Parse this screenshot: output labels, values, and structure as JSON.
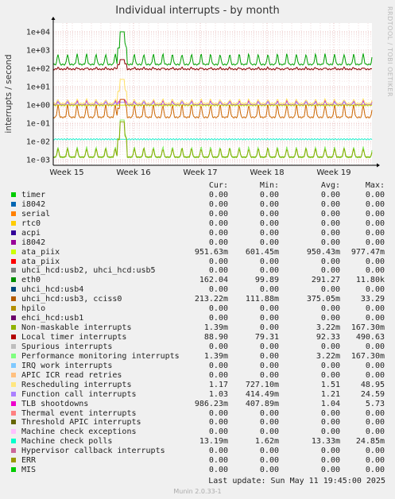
{
  "header": {
    "title": "Individual interrupts - by month",
    "side_text": "RRDTOOL / TOBI OETIKER"
  },
  "chart_data": {
    "type": "line",
    "title": "Individual interrupts - by month",
    "ylabel": "interrupts / second",
    "y_scale": "log",
    "ylim": [
      0.0005,
      30000
    ],
    "y_ticks": [
      "1e+04",
      "1e+03",
      "1e+02",
      "1e+01",
      "1e+00",
      "1e-01",
      "1e-02",
      "1e-03"
    ],
    "y_tick_values": [
      10000,
      1000,
      100,
      10,
      1,
      0.1,
      0.01,
      0.001
    ],
    "x_ticks": [
      "Week 15",
      "Week 16",
      "Week 17",
      "Week 18",
      "Week 19"
    ],
    "grid": true,
    "spike_at": "Week 16",
    "series": [
      {
        "name": "eth0",
        "color": "#00a000",
        "typical": 162,
        "daily_peak": 600,
        "spike": 10000
      },
      {
        "name": "Local timer interrupts",
        "color": "#8b0000",
        "typical": 89,
        "daily_peak": 110,
        "spike": 300
      },
      {
        "name": "TLB shootdowns",
        "color": "#cc00cc",
        "typical": 1.0,
        "daily_peak": 1.6,
        "spike": 2
      },
      {
        "name": "Function call interrupts",
        "color": "#a080ff",
        "typical": 1.03,
        "daily_peak": 1.5,
        "spike": 1.4
      },
      {
        "name": "ata_piix",
        "color": "#ccee00",
        "typical": 0.95,
        "daily_peak": 0.98,
        "spike": 0.97
      },
      {
        "name": "uhci_hcd:usb3, cciss0",
        "color": "#cc6600",
        "typical": 0.21,
        "daily_peak": 1.0,
        "spike": 2
      },
      {
        "name": "Rescheduling interrupts",
        "color": "#ffe066",
        "typical": 1.2,
        "daily_peak": 2,
        "spike": 25
      },
      {
        "name": "Machine check polls",
        "color": "#22eecc",
        "typical": 0.0132,
        "daily_peak": 0.0134,
        "spike": 0.0133
      },
      {
        "name": "Performance monitoring interrupts",
        "color": "#88ee66",
        "typical": 0.0014,
        "daily_peak": 0.005,
        "spike": 0.15
      },
      {
        "name": "Non-maskable interrupts",
        "color": "#88aa00",
        "typical": 0.0014,
        "daily_peak": 0.004,
        "spike": 0.12
      }
    ]
  },
  "legend": {
    "headers": {
      "cur": "Cur:",
      "min": "Min:",
      "avg": "Avg:",
      "max": "Max:"
    },
    "rows": [
      {
        "name": "timer",
        "color": "#00cc00",
        "cur": "0.00",
        "min": "0.00",
        "avg": "0.00",
        "max": "0.00"
      },
      {
        "name": "i8042",
        "color": "#0066b3",
        "cur": "0.00",
        "min": "0.00",
        "avg": "0.00",
        "max": "0.00"
      },
      {
        "name": "serial",
        "color": "#ff8000",
        "cur": "0.00",
        "min": "0.00",
        "avg": "0.00",
        "max": "0.00"
      },
      {
        "name": "rtc0",
        "color": "#ffcc00",
        "cur": "0.00",
        "min": "0.00",
        "avg": "0.00",
        "max": "0.00"
      },
      {
        "name": "acpi",
        "color": "#330099",
        "cur": "0.00",
        "min": "0.00",
        "avg": "0.00",
        "max": "0.00"
      },
      {
        "name": "i8042",
        "color": "#990099",
        "cur": "0.00",
        "min": "0.00",
        "avg": "0.00",
        "max": "0.00"
      },
      {
        "name": "ata_piix",
        "color": "#ccff00",
        "cur": "951.63m",
        "min": "601.45m",
        "avg": "950.43m",
        "max": "977.47m"
      },
      {
        "name": "ata_piix",
        "color": "#ff0000",
        "cur": "0.00",
        "min": "0.00",
        "avg": "0.00",
        "max": "0.00"
      },
      {
        "name": "uhci_hcd:usb2, uhci_hcd:usb5",
        "color": "#808080",
        "cur": "0.00",
        "min": "0.00",
        "avg": "0.00",
        "max": "0.00"
      },
      {
        "name": "eth0",
        "color": "#008f00",
        "cur": "162.04",
        "min": "99.89",
        "avg": "291.27",
        "max": "11.80k"
      },
      {
        "name": "uhci_hcd:usb4",
        "color": "#00487d",
        "cur": "0.00",
        "min": "0.00",
        "avg": "0.00",
        "max": "0.00"
      },
      {
        "name": "uhci_hcd:usb3, cciss0",
        "color": "#b35a00",
        "cur": "213.22m",
        "min": "111.88m",
        "avg": "375.05m",
        "max": "33.29"
      },
      {
        "name": "hpilo",
        "color": "#b38f00",
        "cur": "0.00",
        "min": "0.00",
        "avg": "0.00",
        "max": "0.00"
      },
      {
        "name": "ehci_hcd:usb1",
        "color": "#6b006b",
        "cur": "0.00",
        "min": "0.00",
        "avg": "0.00",
        "max": "0.00"
      },
      {
        "name": "Non-maskable interrupts",
        "color": "#8fb300",
        "cur": "1.39m",
        "min": "0.00",
        "avg": "3.22m",
        "max": "167.30m"
      },
      {
        "name": "Local timer interrupts",
        "color": "#b30000",
        "cur": "88.90",
        "min": "79.31",
        "avg": "92.33",
        "max": "490.63"
      },
      {
        "name": "Spurious interrupts",
        "color": "#bebebe",
        "cur": "0.00",
        "min": "0.00",
        "avg": "0.00",
        "max": "0.00"
      },
      {
        "name": "Performance monitoring interrupts",
        "color": "#80ff80",
        "cur": "1.39m",
        "min": "0.00",
        "avg": "3.22m",
        "max": "167.30m"
      },
      {
        "name": "IRQ work interrupts",
        "color": "#80c9ff",
        "cur": "0.00",
        "min": "0.00",
        "avg": "0.00",
        "max": "0.00"
      },
      {
        "name": "APIC ICR read retries",
        "color": "#ffc080",
        "cur": "0.00",
        "min": "0.00",
        "avg": "0.00",
        "max": "0.00"
      },
      {
        "name": "Rescheduling interrupts",
        "color": "#ffe680",
        "cur": "1.17",
        "min": "727.10m",
        "avg": "1.51",
        "max": "48.95"
      },
      {
        "name": "Function call interrupts",
        "color": "#aa80ff",
        "cur": "1.03",
        "min": "414.49m",
        "avg": "1.21",
        "max": "24.59"
      },
      {
        "name": "TLB shootdowns",
        "color": "#ee00cc",
        "cur": "986.23m",
        "min": "407.89m",
        "avg": "1.04",
        "max": "5.73"
      },
      {
        "name": "Thermal event interrupts",
        "color": "#ff8080",
        "cur": "0.00",
        "min": "0.00",
        "avg": "0.00",
        "max": "0.00"
      },
      {
        "name": "Threshold APIC interrupts",
        "color": "#666600",
        "cur": "0.00",
        "min": "0.00",
        "avg": "0.00",
        "max": "0.00"
      },
      {
        "name": "Machine check exceptions",
        "color": "#ffbfff",
        "cur": "0.00",
        "min": "0.00",
        "avg": "0.00",
        "max": "0.00"
      },
      {
        "name": "Machine check polls",
        "color": "#00ffcc",
        "cur": "13.19m",
        "min": "1.62m",
        "avg": "13.33m",
        "max": "24.85m"
      },
      {
        "name": "Hypervisor callback interrupts",
        "color": "#cc6699",
        "cur": "0.00",
        "min": "0.00",
        "avg": "0.00",
        "max": "0.00"
      },
      {
        "name": "ERR",
        "color": "#999900",
        "cur": "0.00",
        "min": "0.00",
        "avg": "0.00",
        "max": "0.00"
      },
      {
        "name": "MIS",
        "color": "#00cc00",
        "cur": "0.00",
        "min": "0.00",
        "avg": "0.00",
        "max": "0.00"
      }
    ]
  },
  "footer": {
    "last_update": "Last update:  Sun May 11 19:45:00 2025",
    "munin": "Munin 2.0.33-1"
  }
}
